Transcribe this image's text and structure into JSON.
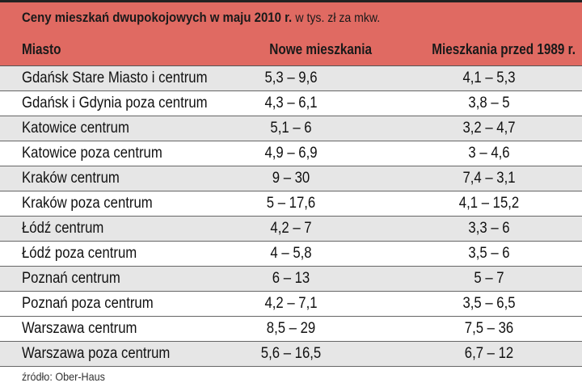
{
  "title": {
    "bold": "Ceny mieszkań dwupokojowych w maju 2010 r.",
    "unit": "w tys. zł za mkw."
  },
  "columns": [
    "Miasto",
    "Nowe mieszkania",
    "Mieszkania przed 1989 r."
  ],
  "rows": [
    {
      "city": "Gdańsk Stare Miasto i centrum",
      "new": "5,3 – 9,6",
      "old": "4,1 – 5,3"
    },
    {
      "city": "Gdańsk i Gdynia poza centrum",
      "new": "4,3 – 6,1",
      "old": "3,8 – 5"
    },
    {
      "city": "Katowice centrum",
      "new": "5,1 – 6",
      "old": "3,2 – 4,7"
    },
    {
      "city": "Katowice poza centrum",
      "new": "4,9 – 6,9",
      "old": "3 – 4,6"
    },
    {
      "city": "Kraków centrum",
      "new": "9 – 30",
      "old": "7,4 – 3,1"
    },
    {
      "city": "Kraków poza centrum",
      "new": "5 – 17,6",
      "old": "4,1 – 15,2"
    },
    {
      "city": "Łódź centrum",
      "new": "4,2 – 7",
      "old": "3,3 – 6"
    },
    {
      "city": "Łódź poza centrum",
      "new": "4 – 5,8",
      "old": "3,5 – 6"
    },
    {
      "city": "Poznań centrum",
      "new": "6 – 13",
      "old": "5 – 7"
    },
    {
      "city": "Poznań poza centrum",
      "new": "4,2 – 7,1",
      "old": "3,5 – 6,5"
    },
    {
      "city": "Warszawa centrum",
      "new": "8,5 – 29",
      "old": "7,5 – 36"
    },
    {
      "city": "Warszawa poza centrum",
      "new": "5,6 – 16,5",
      "old": "6,7 – 12"
    }
  ],
  "source": "źródło: Ober-Haus",
  "colors": {
    "header": "#e06a62",
    "stripe": "#e6e6e6"
  }
}
